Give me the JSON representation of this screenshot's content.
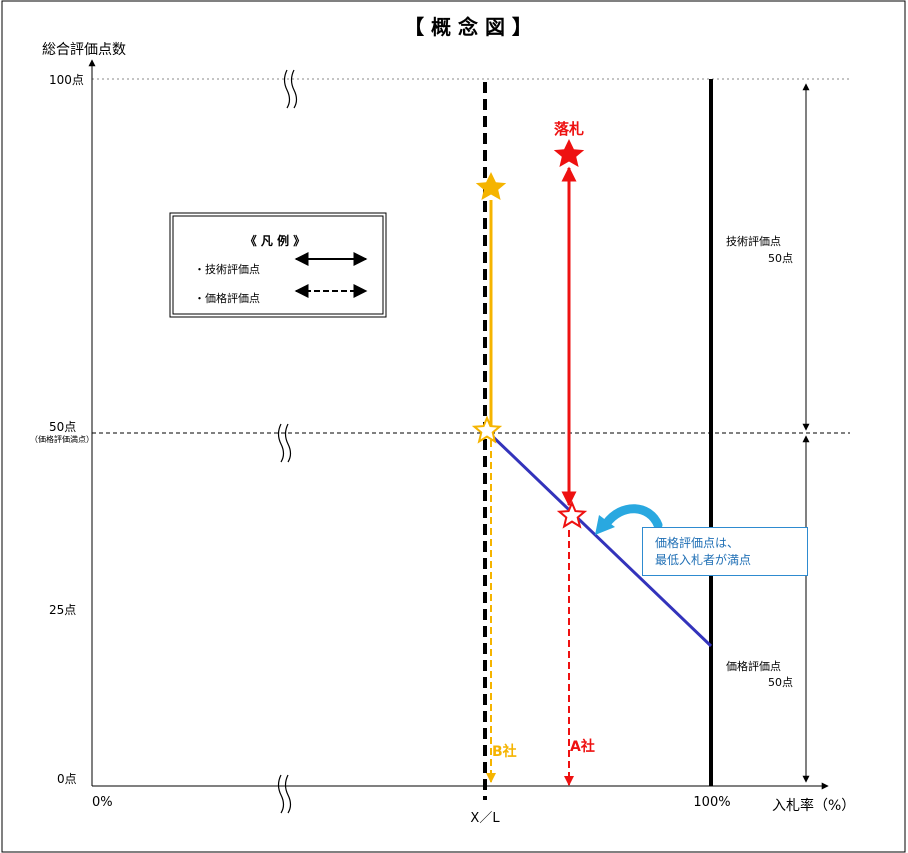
{
  "title": "【 概 念 図 】",
  "y_axis_label": "総合評価点数",
  "x_axis_label": "入札率（%）",
  "y_ticks": [
    "100点",
    "50点",
    "（価格評価満点）",
    "25点",
    "0点"
  ],
  "x_ticks": [
    "0%",
    "X／L",
    "100%"
  ],
  "legend": {
    "title": "《 凡 例 》",
    "items": [
      "・技術評価点",
      "・価格評価点"
    ]
  },
  "labels": {
    "winner": "落札",
    "company_a": "A社",
    "company_b": "B社",
    "tech_score": "技術評価点",
    "tech_points": "50点",
    "price_score": "価格評価点",
    "price_points": "50点"
  },
  "callout": {
    "line1": "価格評価点は、",
    "line2": "最低入札者が満点"
  },
  "colors": {
    "red": "#ee1111",
    "yellow": "#f5b400",
    "blue": "#3333bb",
    "callout_blue": "#2e8bd0"
  }
}
